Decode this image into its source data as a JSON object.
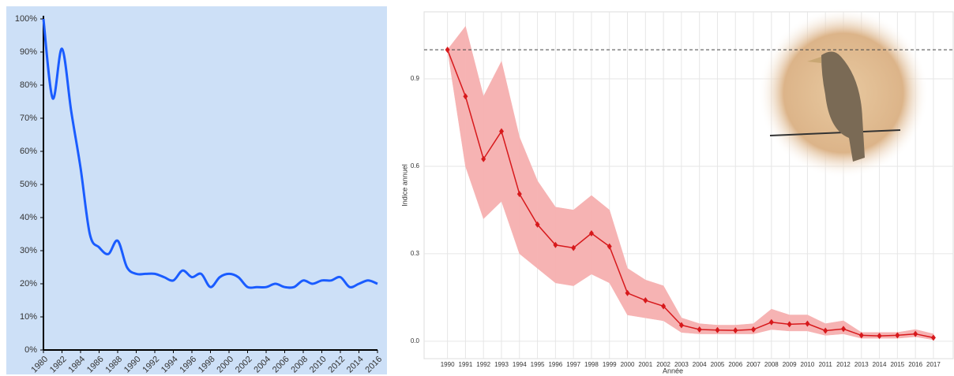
{
  "chart_data": [
    {
      "type": "line",
      "x": [
        1980,
        1981,
        1982,
        1983,
        1984,
        1985,
        1986,
        1987,
        1988,
        1989,
        1990,
        1991,
        1992,
        1993,
        1994,
        1995,
        1996,
        1997,
        1998,
        1999,
        2000,
        2001,
        2002,
        2003,
        2004,
        2005,
        2006,
        2007,
        2008,
        2009,
        2010,
        2011,
        2012,
        2013,
        2014,
        2015,
        2016
      ],
      "values": [
        100,
        76,
        91,
        72,
        55,
        35,
        31,
        29,
        33,
        25,
        23,
        23,
        23,
        22,
        21,
        24,
        22,
        23,
        19,
        22,
        23,
        22,
        19,
        19,
        19,
        20,
        19,
        19,
        21,
        20,
        21,
        21,
        22,
        19,
        20,
        21,
        20
      ],
      "color": "#1a5cff",
      "background": "#cde0f7",
      "xlim": [
        1980,
        2016
      ],
      "xticks": [
        1980,
        1982,
        1984,
        1986,
        1988,
        1990,
        1992,
        1994,
        1996,
        1998,
        2000,
        2002,
        2004,
        2006,
        2008,
        2010,
        2012,
        2014,
        2016
      ],
      "ylim": [
        0,
        100
      ],
      "yticks": [
        {
          "value": 0,
          "label": "0%"
        },
        {
          "value": 10,
          "label": "10%"
        },
        {
          "value": 20,
          "label": "20%"
        },
        {
          "value": 30,
          "label": "30%"
        },
        {
          "value": 40,
          "label": "40%"
        },
        {
          "value": 50,
          "label": "50%"
        },
        {
          "value": 60,
          "label": "60%"
        },
        {
          "value": 70,
          "label": "70%"
        },
        {
          "value": 80,
          "label": "80%"
        },
        {
          "value": 90,
          "label": "90%"
        },
        {
          "value": 100,
          "label": "100%"
        }
      ],
      "grid": false
    },
    {
      "type": "line",
      "xlabel": "Année",
      "ylabel": "Indice annuel",
      "x": [
        1990,
        1991,
        1992,
        1993,
        1994,
        1995,
        1996,
        1997,
        1998,
        1999,
        2000,
        2001,
        2002,
        2003,
        2004,
        2005,
        2006,
        2007,
        2008,
        2009,
        2010,
        2011,
        2012,
        2013,
        2014,
        2015,
        2016,
        2017
      ],
      "values": [
        1.0,
        0.84,
        0.625,
        0.72,
        0.505,
        0.4,
        0.33,
        0.32,
        0.37,
        0.325,
        0.165,
        0.14,
        0.12,
        0.055,
        0.04,
        0.038,
        0.037,
        0.04,
        0.065,
        0.058,
        0.06,
        0.036,
        0.042,
        0.02,
        0.018,
        0.02,
        0.025,
        0.012
      ],
      "lower": [
        1.0,
        0.6,
        0.42,
        0.48,
        0.3,
        0.25,
        0.2,
        0.19,
        0.23,
        0.2,
        0.09,
        0.08,
        0.07,
        0.03,
        0.025,
        0.025,
        0.025,
        0.025,
        0.04,
        0.035,
        0.035,
        0.02,
        0.025,
        0.01,
        0.01,
        0.01,
        0.015,
        0.005
      ],
      "upper": [
        1.0,
        1.08,
        0.84,
        0.96,
        0.7,
        0.55,
        0.46,
        0.45,
        0.5,
        0.45,
        0.25,
        0.21,
        0.19,
        0.08,
        0.06,
        0.055,
        0.055,
        0.06,
        0.11,
        0.09,
        0.09,
        0.06,
        0.07,
        0.03,
        0.03,
        0.03,
        0.04,
        0.025
      ],
      "color": "#d7191c",
      "band_color": "#f6b3b3",
      "hline": 1,
      "xlim": [
        1988.7,
        2018.1
      ],
      "xticks": [
        1990,
        1991,
        1992,
        1993,
        1994,
        1995,
        1996,
        1997,
        1998,
        1999,
        2000,
        2001,
        2002,
        2003,
        2004,
        2005,
        2006,
        2007,
        2008,
        2009,
        2010,
        2011,
        2012,
        2013,
        2014,
        2015,
        2016,
        2017
      ],
      "ylim": [
        -0.06,
        1.13
      ],
      "yticks": [
        {
          "value": 0,
          "label": "0.0"
        },
        0.3,
        0.6,
        0.9
      ],
      "grid": true
    }
  ]
}
